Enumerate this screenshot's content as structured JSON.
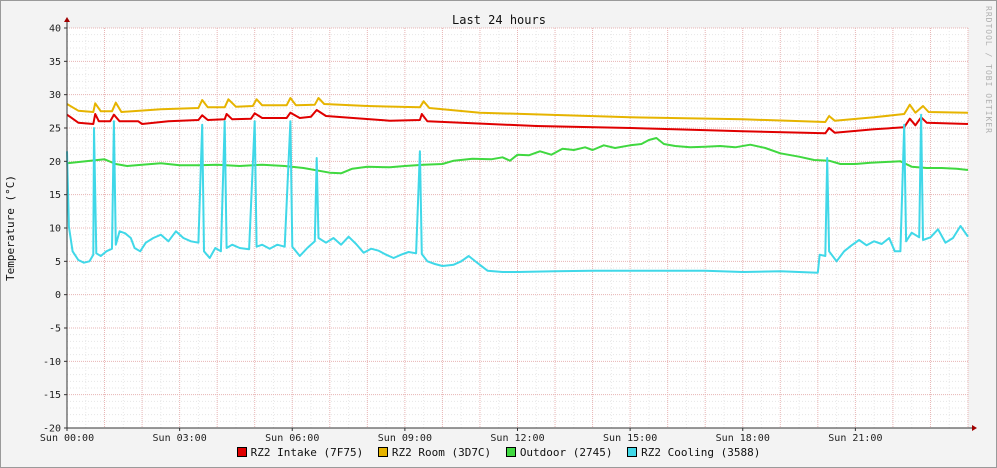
{
  "chart_data": {
    "type": "line",
    "title": "Last 24 hours",
    "ylabel": "Temperature (°C)",
    "xlabel": "",
    "watermark": "RRDTOOL / TOBI OETIKER",
    "ylim": [
      -20,
      40
    ],
    "y_ticks": [
      40,
      35,
      30,
      25,
      20,
      15,
      10,
      5,
      0,
      -5,
      -10,
      -15,
      -20
    ],
    "x_range_hours": [
      0,
      24
    ],
    "x_ticks": [
      {
        "hour": 0,
        "label": "Sun 00:00"
      },
      {
        "hour": 3,
        "label": "Sun 03:00"
      },
      {
        "hour": 6,
        "label": "Sun 06:00"
      },
      {
        "hour": 9,
        "label": "Sun 09:00"
      },
      {
        "hour": 12,
        "label": "Sun 12:00"
      },
      {
        "hour": 15,
        "label": "Sun 15:00"
      },
      {
        "hour": 18,
        "label": "Sun 18:00"
      },
      {
        "hour": 21,
        "label": "Sun 21:00"
      }
    ],
    "grid": true,
    "legend_position": "bottom",
    "series": [
      {
        "name": "RZ2 Intake (7F75)",
        "color": "#e00000",
        "points": [
          [
            0,
            27
          ],
          [
            0.1,
            26.6
          ],
          [
            0.3,
            25.8
          ],
          [
            0.7,
            25.6
          ],
          [
            0.75,
            27.1
          ],
          [
            0.85,
            26.0
          ],
          [
            1.15,
            26.0
          ],
          [
            1.25,
            27.0
          ],
          [
            1.4,
            26.0
          ],
          [
            1.9,
            26.0
          ],
          [
            2.0,
            25.6
          ],
          [
            2.7,
            26.0
          ],
          [
            3.5,
            26.2
          ],
          [
            3.6,
            26.9
          ],
          [
            3.75,
            26.2
          ],
          [
            4.2,
            26.3
          ],
          [
            4.25,
            27.1
          ],
          [
            4.4,
            26.3
          ],
          [
            4.9,
            26.4
          ],
          [
            5.0,
            27.2
          ],
          [
            5.2,
            26.5
          ],
          [
            5.85,
            26.5
          ],
          [
            5.95,
            27.3
          ],
          [
            6.2,
            26.5
          ],
          [
            6.5,
            26.7
          ],
          [
            6.65,
            27.7
          ],
          [
            6.9,
            26.8
          ],
          [
            8.6,
            26.1
          ],
          [
            9.4,
            26.2
          ],
          [
            9.45,
            27.1
          ],
          [
            9.6,
            26.0
          ],
          [
            12.5,
            25.3
          ],
          [
            15,
            25.0
          ],
          [
            18,
            24.5
          ],
          [
            20.2,
            24.2
          ],
          [
            20.3,
            25.0
          ],
          [
            20.45,
            24.3
          ],
          [
            21.5,
            24.8
          ],
          [
            22.3,
            25.1
          ],
          [
            22.45,
            26.4
          ],
          [
            22.6,
            25.4
          ],
          [
            22.75,
            26.6
          ],
          [
            22.9,
            25.8
          ],
          [
            24,
            25.6
          ]
        ]
      },
      {
        "name": "RZ2 Room (3D7C)",
        "color": "#e6b400",
        "points": [
          [
            0,
            28.6
          ],
          [
            0.3,
            27.6
          ],
          [
            0.7,
            27.4
          ],
          [
            0.75,
            28.7
          ],
          [
            0.9,
            27.5
          ],
          [
            1.2,
            27.5
          ],
          [
            1.3,
            28.8
          ],
          [
            1.45,
            27.4
          ],
          [
            2.5,
            27.8
          ],
          [
            3.5,
            28.0
          ],
          [
            3.6,
            29.2
          ],
          [
            3.75,
            28.1
          ],
          [
            4.2,
            28.1
          ],
          [
            4.3,
            29.3
          ],
          [
            4.5,
            28.2
          ],
          [
            4.95,
            28.3
          ],
          [
            5.05,
            29.3
          ],
          [
            5.2,
            28.4
          ],
          [
            5.85,
            28.4
          ],
          [
            5.95,
            29.5
          ],
          [
            6.1,
            28.4
          ],
          [
            6.6,
            28.5
          ],
          [
            6.7,
            29.5
          ],
          [
            6.85,
            28.6
          ],
          [
            8.0,
            28.3
          ],
          [
            9.4,
            28.1
          ],
          [
            9.5,
            29.0
          ],
          [
            9.65,
            28.0
          ],
          [
            11,
            27.3
          ],
          [
            15,
            26.6
          ],
          [
            18,
            26.3
          ],
          [
            20.2,
            25.9
          ],
          [
            20.3,
            26.8
          ],
          [
            20.45,
            26.1
          ],
          [
            21.5,
            26.6
          ],
          [
            22.3,
            27.1
          ],
          [
            22.45,
            28.5
          ],
          [
            22.6,
            27.3
          ],
          [
            22.8,
            28.3
          ],
          [
            22.95,
            27.4
          ],
          [
            24,
            27.3
          ]
        ]
      },
      {
        "name": "Outdoor (2745)",
        "color": "#40d840",
        "points": [
          [
            0,
            19.7
          ],
          [
            0.5,
            20.0
          ],
          [
            1.0,
            20.3
          ],
          [
            1.3,
            19.6
          ],
          [
            1.6,
            19.3
          ],
          [
            2.0,
            19.5
          ],
          [
            2.5,
            19.7
          ],
          [
            3.0,
            19.4
          ],
          [
            3.5,
            19.4
          ],
          [
            4.0,
            19.5
          ],
          [
            4.6,
            19.3
          ],
          [
            5.2,
            19.5
          ],
          [
            5.8,
            19.3
          ],
          [
            6.3,
            19.0
          ],
          [
            7.0,
            18.3
          ],
          [
            7.3,
            18.2
          ],
          [
            7.6,
            18.9
          ],
          [
            8.0,
            19.2
          ],
          [
            8.6,
            19.1
          ],
          [
            9.0,
            19.3
          ],
          [
            9.5,
            19.5
          ],
          [
            10.0,
            19.6
          ],
          [
            10.3,
            20.1
          ],
          [
            10.8,
            20.4
          ],
          [
            11.3,
            20.3
          ],
          [
            11.6,
            20.6
          ],
          [
            11.8,
            20.1
          ],
          [
            12.0,
            21.0
          ],
          [
            12.3,
            20.9
          ],
          [
            12.6,
            21.5
          ],
          [
            12.9,
            21.0
          ],
          [
            13.2,
            21.9
          ],
          [
            13.5,
            21.7
          ],
          [
            13.8,
            22.1
          ],
          [
            14.0,
            21.7
          ],
          [
            14.3,
            22.4
          ],
          [
            14.6,
            22.0
          ],
          [
            15.0,
            22.4
          ],
          [
            15.3,
            22.6
          ],
          [
            15.5,
            23.2
          ],
          [
            15.7,
            23.5
          ],
          [
            15.9,
            22.6
          ],
          [
            16.2,
            22.3
          ],
          [
            16.6,
            22.1
          ],
          [
            17.0,
            22.2
          ],
          [
            17.4,
            22.3
          ],
          [
            17.8,
            22.1
          ],
          [
            18.2,
            22.5
          ],
          [
            18.6,
            22.0
          ],
          [
            19.0,
            21.2
          ],
          [
            19.5,
            20.7
          ],
          [
            19.9,
            20.2
          ],
          [
            20.3,
            20.1
          ],
          [
            20.6,
            19.6
          ],
          [
            21.0,
            19.6
          ],
          [
            21.4,
            19.8
          ],
          [
            21.8,
            19.9
          ],
          [
            22.2,
            20.0
          ],
          [
            22.5,
            19.2
          ],
          [
            22.9,
            19.0
          ],
          [
            23.3,
            19.0
          ],
          [
            23.7,
            18.9
          ],
          [
            24.0,
            18.7
          ]
        ]
      },
      {
        "name": "RZ2 Cooling (3588)",
        "color": "#40d8e8",
        "points": [
          [
            0,
            21.5
          ],
          [
            0.05,
            10.2
          ],
          [
            0.15,
            6.5
          ],
          [
            0.3,
            5.2
          ],
          [
            0.45,
            4.8
          ],
          [
            0.6,
            5.0
          ],
          [
            0.7,
            6.0
          ],
          [
            0.72,
            25.0
          ],
          [
            0.78,
            6.2
          ],
          [
            0.9,
            5.8
          ],
          [
            1.05,
            6.5
          ],
          [
            1.2,
            6.9
          ],
          [
            1.25,
            26.0
          ],
          [
            1.3,
            7.5
          ],
          [
            1.4,
            9.5
          ],
          [
            1.55,
            9.2
          ],
          [
            1.7,
            8.5
          ],
          [
            1.8,
            7.0
          ],
          [
            1.95,
            6.5
          ],
          [
            2.1,
            7.8
          ],
          [
            2.3,
            8.5
          ],
          [
            2.5,
            9.0
          ],
          [
            2.7,
            8.0
          ],
          [
            2.9,
            9.5
          ],
          [
            3.1,
            8.5
          ],
          [
            3.3,
            8.0
          ],
          [
            3.5,
            7.8
          ],
          [
            3.6,
            25.5
          ],
          [
            3.65,
            6.5
          ],
          [
            3.8,
            5.5
          ],
          [
            3.95,
            7.0
          ],
          [
            4.1,
            6.5
          ],
          [
            4.2,
            26.0
          ],
          [
            4.25,
            7.0
          ],
          [
            4.4,
            7.5
          ],
          [
            4.6,
            7.0
          ],
          [
            4.85,
            6.8
          ],
          [
            5.0,
            26.0
          ],
          [
            5.05,
            7.2
          ],
          [
            5.2,
            7.5
          ],
          [
            5.4,
            6.9
          ],
          [
            5.6,
            7.5
          ],
          [
            5.8,
            7.2
          ],
          [
            5.95,
            26.0
          ],
          [
            6.0,
            7.2
          ],
          [
            6.2,
            5.8
          ],
          [
            6.4,
            7.0
          ],
          [
            6.6,
            8.0
          ],
          [
            6.65,
            20.5
          ],
          [
            6.7,
            8.5
          ],
          [
            6.9,
            7.8
          ],
          [
            7.1,
            8.5
          ],
          [
            7.3,
            7.5
          ],
          [
            7.5,
            8.7
          ],
          [
            7.7,
            7.6
          ],
          [
            7.9,
            6.3
          ],
          [
            8.1,
            6.9
          ],
          [
            8.3,
            6.6
          ],
          [
            8.5,
            6.0
          ],
          [
            8.7,
            5.5
          ],
          [
            8.9,
            6.0
          ],
          [
            9.1,
            6.4
          ],
          [
            9.3,
            6.2
          ],
          [
            9.4,
            21.5
          ],
          [
            9.45,
            6.1
          ],
          [
            9.6,
            5.0
          ],
          [
            9.8,
            4.6
          ],
          [
            10.0,
            4.3
          ],
          [
            10.3,
            4.5
          ],
          [
            10.5,
            5.0
          ],
          [
            10.7,
            5.8
          ],
          [
            10.9,
            4.9
          ],
          [
            11.2,
            3.6
          ],
          [
            11.6,
            3.4
          ],
          [
            12.0,
            3.4
          ],
          [
            13.0,
            3.5
          ],
          [
            14.0,
            3.6
          ],
          [
            15.0,
            3.6
          ],
          [
            16.0,
            3.6
          ],
          [
            17.0,
            3.6
          ],
          [
            18.0,
            3.4
          ],
          [
            19.0,
            3.5
          ],
          [
            20.0,
            3.3
          ],
          [
            20.05,
            6.0
          ],
          [
            20.2,
            5.8
          ],
          [
            20.25,
            20.5
          ],
          [
            20.3,
            6.5
          ],
          [
            20.5,
            5.0
          ],
          [
            20.7,
            6.5
          ],
          [
            20.9,
            7.4
          ],
          [
            21.1,
            8.2
          ],
          [
            21.3,
            7.4
          ],
          [
            21.5,
            8.0
          ],
          [
            21.7,
            7.6
          ],
          [
            21.9,
            8.5
          ],
          [
            22.05,
            6.5
          ],
          [
            22.2,
            6.5
          ],
          [
            22.3,
            25.5
          ],
          [
            22.35,
            8.0
          ],
          [
            22.5,
            9.3
          ],
          [
            22.7,
            8.6
          ],
          [
            22.75,
            27.0
          ],
          [
            22.8,
            8.2
          ],
          [
            23.0,
            8.6
          ],
          [
            23.2,
            9.8
          ],
          [
            23.4,
            7.8
          ],
          [
            23.6,
            8.5
          ],
          [
            23.8,
            10.3
          ],
          [
            24.0,
            8.7
          ]
        ]
      }
    ]
  }
}
